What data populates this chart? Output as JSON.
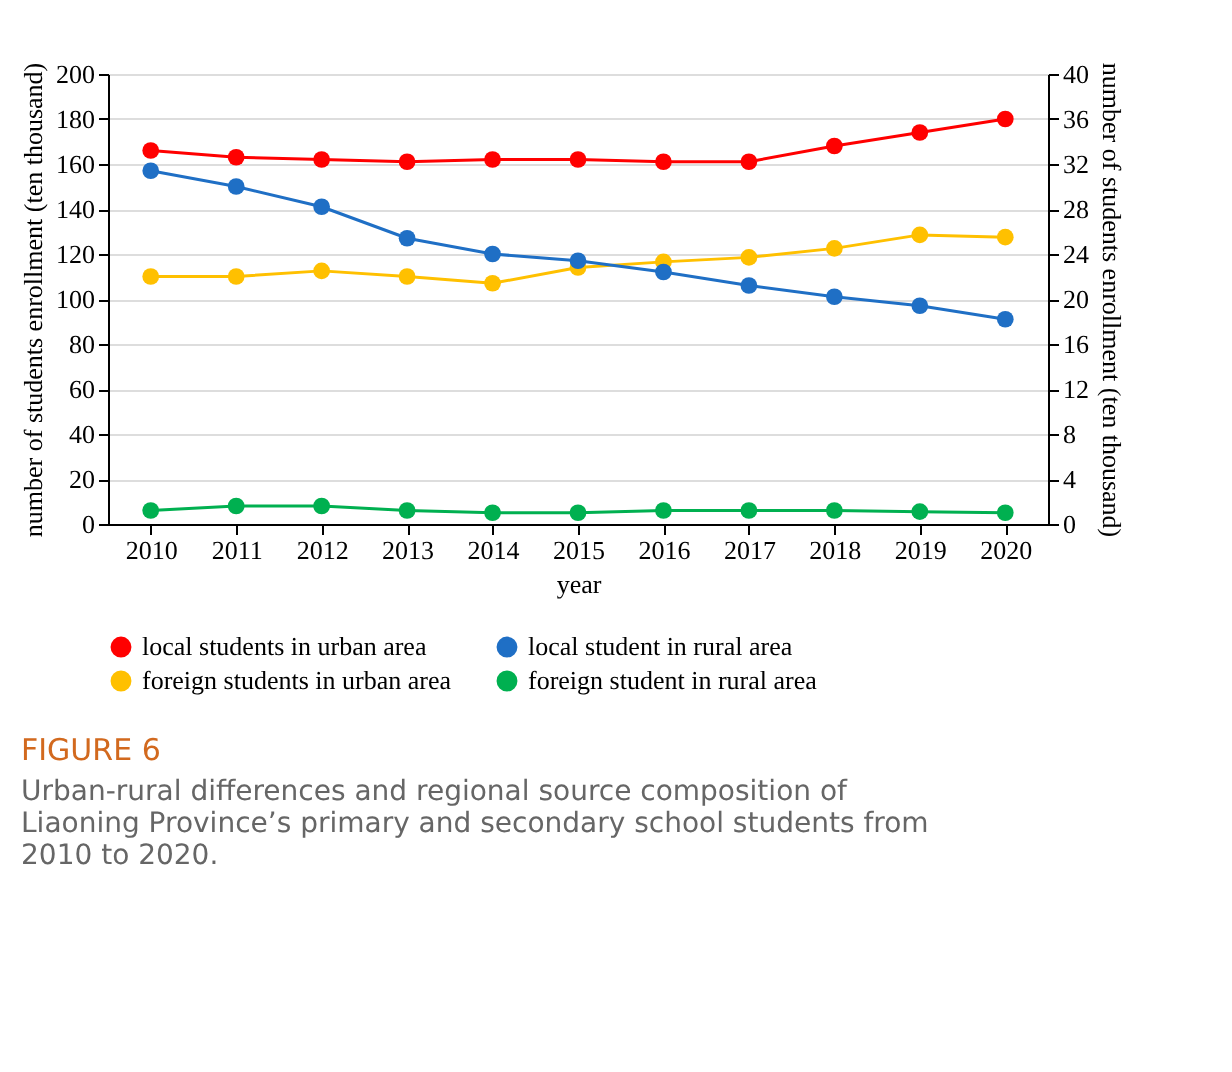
{
  "chart_data": {
    "type": "line",
    "title": "FIGURE 6",
    "annotations": [
      "Urban-rural differences and regional source composition of Liaoning Province’s primary and secondary school students from 2010 to 2020."
    ],
    "xlabel": "year",
    "ylabel": "number of students enrollment (ten thousand)",
    "y2label": "number of students enrollment (ten thousand)",
    "categories": [
      "2010",
      "2011",
      "2012",
      "2013",
      "2014",
      "2015",
      "2016",
      "2017",
      "2018",
      "2019",
      "2020"
    ],
    "series": [
      {
        "name": "local students in urban area",
        "color": "#ff0000",
        "values": [
          166,
          163,
          162,
          161,
          162,
          162,
          161,
          161,
          168,
          174,
          180
        ]
      },
      {
        "name": "local student in rural area",
        "color": "#1f6fc5",
        "values": [
          157,
          150,
          141,
          127,
          120,
          117,
          112,
          106,
          101,
          97,
          91
        ]
      },
      {
        "name": "foreign students in urban area",
        "color": "#ffc000",
        "axis": "y2",
        "values": [
          22,
          22,
          22.5,
          22,
          21.4,
          22.8,
          23.3,
          23.7,
          24.5,
          25.7,
          25.5
        ]
      },
      {
        "name": "foreign student in rural area",
        "color": "#00b050",
        "axis": "y2",
        "values": [
          1.2,
          1.6,
          1.6,
          1.2,
          1.0,
          1.0,
          1.2,
          1.2,
          1.2,
          1.1,
          1.0
        ]
      }
    ],
    "ylim": [
      0,
      200
    ],
    "yticks": [
      0,
      20,
      40,
      60,
      80,
      100,
      120,
      140,
      160,
      180,
      200
    ],
    "y2lim": [
      0,
      40
    ],
    "y2ticks": [
      0,
      4,
      8,
      12,
      16,
      20,
      24,
      28,
      32,
      36,
      40
    ],
    "grid": "y",
    "legend": "bottom",
    "marker": "circle",
    "line_style": "solid"
  }
}
